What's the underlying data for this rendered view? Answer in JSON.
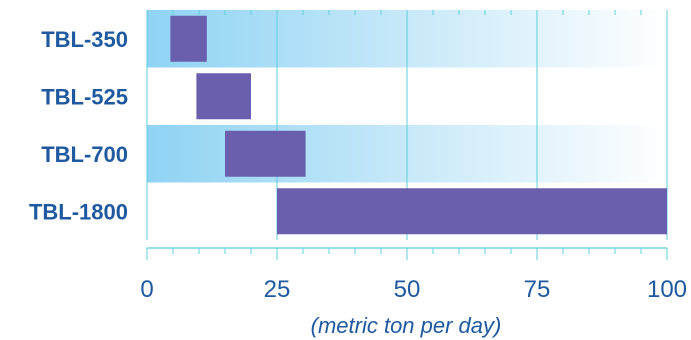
{
  "chart_data": {
    "type": "bar",
    "orientation": "horizontal",
    "style": "range",
    "categories": [
      "TBL-350",
      "TBL-525",
      "TBL-700",
      "TBL-1800"
    ],
    "series": [
      {
        "values": [
          [
            4.5,
            11.5
          ],
          [
            9.5,
            20
          ],
          [
            15,
            30.5
          ],
          [
            25,
            100
          ]
        ]
      }
    ],
    "xlabel": "(metric ton per day)",
    "ylabel": "",
    "xlim": [
      0,
      100
    ],
    "xticks": [
      "0",
      "25",
      "50",
      "75",
      "100"
    ],
    "grid": true,
    "legend": "none",
    "colors": {
      "bar": "#6a5fad",
      "band_start": "#8fd3f3",
      "band_end": "#ffffff",
      "grid": "#5ccfdc",
      "axis": "#5ccfdc",
      "text": "#1f5aa0"
    }
  }
}
